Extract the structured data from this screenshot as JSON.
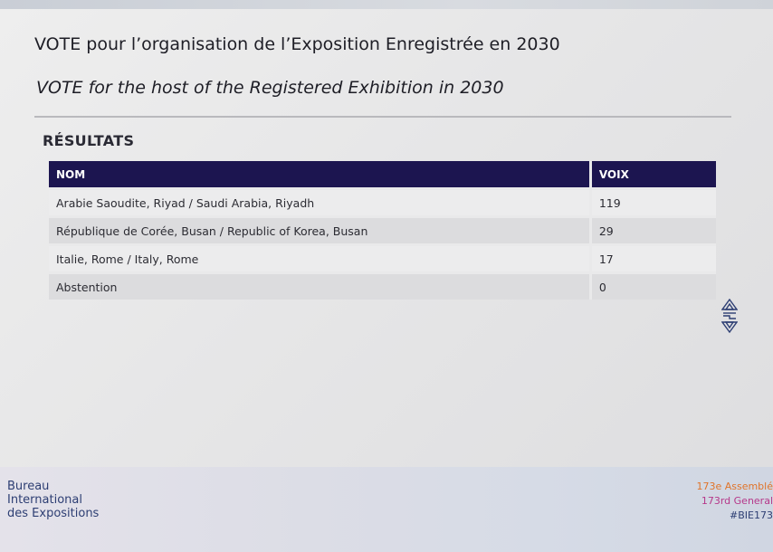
{
  "title_fr": "VOTE pour l’organisation de l’Exposition Enregistrée en 2030",
  "title_en": "VOTE for the host of the Registered Exhibition in 2030",
  "results_heading": "RÉSULTATS",
  "table": {
    "headers": [
      "NOM",
      "VOIX"
    ],
    "rows": [
      {
        "name": "Arabie Saoudite, Riyad / Saudi Arabia, Riyadh",
        "votes": "119"
      },
      {
        "name": "République de Corée, Busan / Republic of Korea, Busan",
        "votes": "29"
      },
      {
        "name": "Italie, Rome / Italy, Rome",
        "votes": "17"
      },
      {
        "name": "Abstention",
        "votes": "0"
      }
    ]
  },
  "footer": {
    "org_lines": [
      "Bureau",
      "International",
      "des Expositions"
    ],
    "event_lines": [
      "173e Assemblé",
      "173rd General",
      "#BIE173"
    ]
  },
  "colors": {
    "table_header_bg": "#1c1550",
    "org_text": "#2d3e73",
    "event_line1": "#e0742a",
    "event_line2": "#b6388a"
  },
  "icons": [
    "bie-logo-icon"
  ]
}
